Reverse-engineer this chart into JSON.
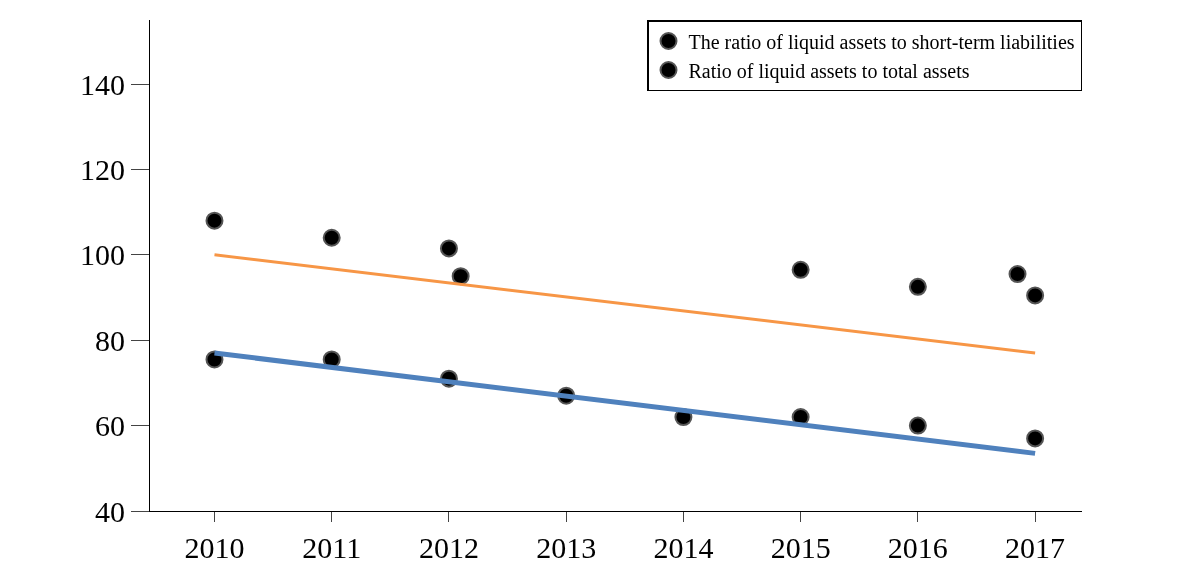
{
  "chart_data": {
    "type": "scatter",
    "xlim": [
      2009.45,
      2017.4
    ],
    "xticks": [
      2010,
      2011,
      2012,
      2013,
      2014,
      2015,
      2016,
      2017
    ],
    "ylim": [
      40,
      155
    ],
    "yticks": [
      40,
      60,
      80,
      100,
      120,
      140
    ],
    "legend": "top right",
    "marker": "circle",
    "series": [
      {
        "name": "The ratio of liquid assets to short-term liabilities",
        "color": "#000000",
        "x": [
          2010,
          2011,
          2012,
          2012.1,
          2015,
          2016,
          2016.85,
          2017
        ],
        "values": [
          108,
          104,
          101.5,
          95,
          96.5,
          92.5,
          95.5,
          90.5
        ]
      },
      {
        "name": "Ratio of liquid assets to total assets",
        "color": "#000000",
        "x": [
          2010,
          2011,
          2012,
          2013,
          2014,
          2015,
          2016,
          2017
        ],
        "values": [
          75.5,
          75.5,
          71,
          67,
          62,
          62,
          60,
          57
        ]
      },
      {
        "type": "line",
        "marker": "none",
        "color": "#f79646",
        "x": [
          2010,
          2017
        ],
        "values": [
          100,
          77
        ]
      },
      {
        "type": "line",
        "marker": "none",
        "color": "#4f81bd",
        "x": [
          2010,
          2017
        ],
        "values": [
          77,
          53.5
        ]
      }
    ]
  }
}
